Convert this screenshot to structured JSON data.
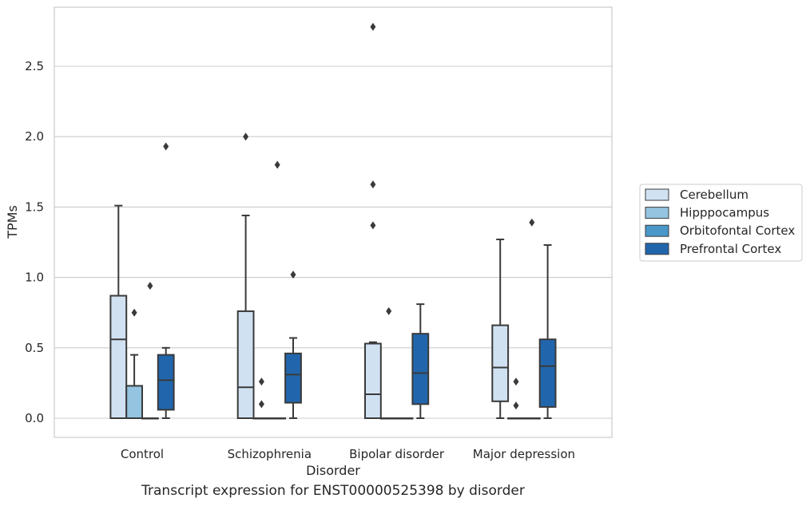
{
  "caption": "Transcript expression for ENST00000525398 by disorder",
  "chart_data": {
    "type": "box",
    "xlabel": "Disorder",
    "ylabel": "TPMs",
    "ylim": [
      -0.13,
      2.91
    ],
    "yticks": [
      0.0,
      0.5,
      1.0,
      1.5,
      2.0,
      2.5
    ],
    "ytick_labels": [
      "0.0",
      "0.5",
      "1.0",
      "1.5",
      "2.0",
      "2.5"
    ],
    "grid": "horizontal",
    "legend_position": "right",
    "categories": [
      "Control",
      "Schizophrenia",
      "Bipolar disorder",
      "Major depression"
    ],
    "series": [
      {
        "name": "Cerebellum",
        "color": "#d0e1f2",
        "boxes": [
          {
            "min": 0.0,
            "q1": 0.0,
            "median": 0.56,
            "q3": 0.87,
            "max": 1.51,
            "outliers": []
          },
          {
            "min": 0.0,
            "q1": 0.0,
            "median": 0.22,
            "q3": 0.76,
            "max": 1.44,
            "outliers": [
              2.0
            ]
          },
          {
            "min": 0.0,
            "q1": 0.0,
            "median": 0.17,
            "q3": 0.53,
            "max": 0.54,
            "outliers": [
              1.37,
              1.66,
              2.78
            ]
          },
          {
            "min": 0.0,
            "q1": 0.12,
            "median": 0.36,
            "q3": 0.66,
            "max": 1.27,
            "outliers": []
          }
        ]
      },
      {
        "name": "Hipppocampus",
        "color": "#94c4df",
        "boxes": [
          {
            "min": 0.0,
            "q1": 0.0,
            "median": 0.0,
            "q3": 0.23,
            "max": 0.45,
            "outliers": [
              0.75
            ]
          },
          {
            "min": 0.0,
            "q1": 0.0,
            "median": 0.0,
            "q3": 0.0,
            "max": 0.0,
            "outliers": [
              0.1,
              0.26
            ]
          },
          {
            "min": 0.0,
            "q1": 0.0,
            "median": 0.0,
            "q3": 0.0,
            "max": 0.0,
            "outliers": [
              0.76
            ]
          },
          {
            "min": 0.0,
            "q1": 0.0,
            "median": 0.0,
            "q3": 0.0,
            "max": 0.0,
            "outliers": [
              0.09,
              0.26
            ]
          }
        ]
      },
      {
        "name": "Orbitofontal Cortex",
        "color": "#4a98c9",
        "boxes": [
          {
            "min": 0.0,
            "q1": 0.0,
            "median": 0.0,
            "q3": 0.0,
            "max": 0.0,
            "outliers": [
              0.94
            ]
          },
          {
            "min": 0.0,
            "q1": 0.0,
            "median": 0.0,
            "q3": 0.0,
            "max": 0.0,
            "outliers": [
              1.8
            ]
          },
          {
            "min": 0.0,
            "q1": 0.0,
            "median": 0.0,
            "q3": 0.0,
            "max": 0.0,
            "outliers": []
          },
          {
            "min": 0.0,
            "q1": 0.0,
            "median": 0.0,
            "q3": 0.0,
            "max": 0.0,
            "outliers": [
              1.39
            ]
          }
        ]
      },
      {
        "name": "Prefrontal Cortex",
        "color": "#2166ac",
        "boxes": [
          {
            "min": 0.0,
            "q1": 0.06,
            "median": 0.27,
            "q3": 0.45,
            "max": 0.5,
            "outliers": [
              1.93
            ]
          },
          {
            "min": 0.0,
            "q1": 0.11,
            "median": 0.31,
            "q3": 0.46,
            "max": 0.57,
            "outliers": [
              1.02
            ]
          },
          {
            "min": 0.0,
            "q1": 0.1,
            "median": 0.32,
            "q3": 0.6,
            "max": 0.81,
            "outliers": []
          },
          {
            "min": 0.0,
            "q1": 0.08,
            "median": 0.37,
            "q3": 0.56,
            "max": 1.23,
            "outliers": []
          }
        ]
      }
    ]
  }
}
